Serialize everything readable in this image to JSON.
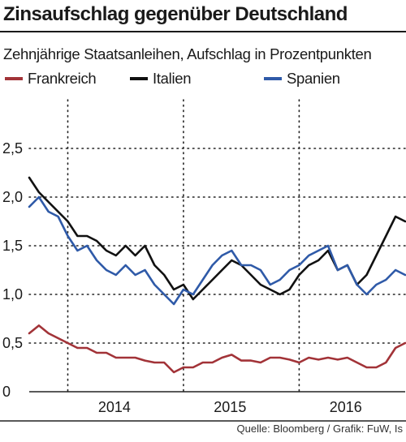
{
  "chart_data": {
    "type": "line",
    "title": "Zinsaufschlag gegenüber Deutschland",
    "subtitle": "Zehnjährige Staatsanleihen, Aufschlag in Prozentpunkten",
    "xlabel": "",
    "ylabel": "",
    "xlim": [
      "2013-09",
      "2016-12"
    ],
    "ylim": [
      0,
      3.0
    ],
    "yticks": [
      "0",
      "0,5",
      "1,0",
      "1,5",
      "2,0",
      "2,5"
    ],
    "xticks": [
      "2014",
      "2015",
      "2016"
    ],
    "grid": "dotted",
    "legend_position": "top",
    "x": [
      "2013-09",
      "2013-10",
      "2013-11",
      "2013-12",
      "2014-01",
      "2014-02",
      "2014-03",
      "2014-04",
      "2014-05",
      "2014-06",
      "2014-07",
      "2014-08",
      "2014-09",
      "2014-10",
      "2014-11",
      "2014-12",
      "2015-01",
      "2015-02",
      "2015-03",
      "2015-04",
      "2015-05",
      "2015-06",
      "2015-07",
      "2015-08",
      "2015-09",
      "2015-10",
      "2015-11",
      "2015-12",
      "2016-01",
      "2016-02",
      "2016-03",
      "2016-04",
      "2016-05",
      "2016-06",
      "2016-07",
      "2016-08",
      "2016-09",
      "2016-10",
      "2016-11",
      "2016-12"
    ],
    "series": [
      {
        "name": "Frankreich",
        "color": "#a23338",
        "values": [
          0.6,
          0.68,
          0.6,
          0.55,
          0.5,
          0.45,
          0.45,
          0.4,
          0.4,
          0.35,
          0.35,
          0.35,
          0.32,
          0.3,
          0.3,
          0.2,
          0.25,
          0.25,
          0.3,
          0.3,
          0.35,
          0.38,
          0.32,
          0.32,
          0.3,
          0.35,
          0.35,
          0.33,
          0.3,
          0.35,
          0.33,
          0.35,
          0.33,
          0.35,
          0.3,
          0.25,
          0.25,
          0.3,
          0.45,
          0.5
        ]
      },
      {
        "name": "Italien",
        "color": "#111111",
        "values": [
          2.2,
          2.05,
          1.95,
          1.85,
          1.75,
          1.6,
          1.6,
          1.55,
          1.45,
          1.4,
          1.5,
          1.4,
          1.5,
          1.3,
          1.2,
          1.05,
          1.1,
          0.95,
          1.05,
          1.15,
          1.25,
          1.35,
          1.3,
          1.2,
          1.1,
          1.05,
          1.0,
          1.05,
          1.2,
          1.3,
          1.35,
          1.45,
          1.25,
          1.3,
          1.1,
          1.2,
          1.4,
          1.6,
          1.8,
          1.75
        ]
      },
      {
        "name": "Spanien",
        "color": "#2f5aa8",
        "values": [
          1.9,
          2.0,
          1.85,
          1.8,
          1.6,
          1.45,
          1.5,
          1.35,
          1.25,
          1.2,
          1.3,
          1.2,
          1.25,
          1.1,
          1.0,
          0.9,
          1.05,
          1.0,
          1.15,
          1.3,
          1.4,
          1.45,
          1.3,
          1.3,
          1.25,
          1.1,
          1.15,
          1.25,
          1.3,
          1.4,
          1.45,
          1.5,
          1.25,
          1.3,
          1.1,
          1.0,
          1.1,
          1.15,
          1.25,
          1.2
        ]
      }
    ]
  },
  "source": "Quelle: Bloomberg / Grafik: FuW, Is"
}
